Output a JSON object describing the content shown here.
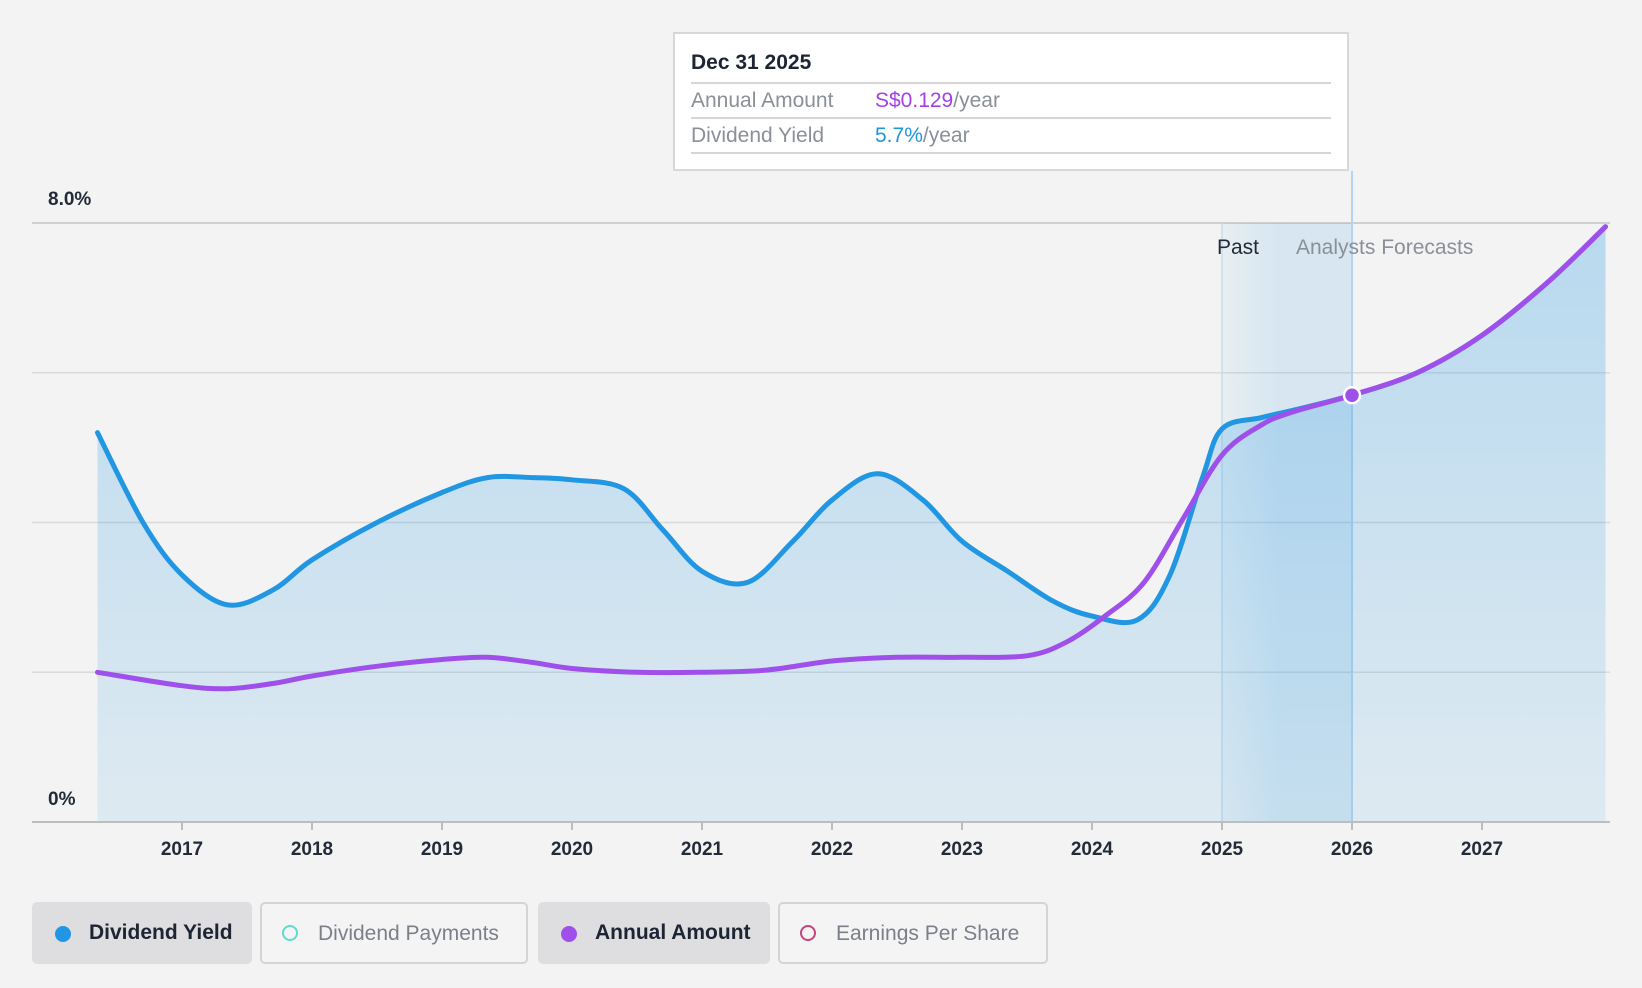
{
  "chart_data": {
    "type": "line",
    "y_axis": {
      "top_label": "8.0%",
      "bottom_label": "0%",
      "ylim": [
        0,
        8.0
      ],
      "unit": "%"
    },
    "x_axis": {
      "tick_labels": [
        "2017",
        "2018",
        "2019",
        "2020",
        "2021",
        "2022",
        "2023",
        "2024",
        "2025",
        "2026",
        "2027"
      ],
      "xlim": [
        2016.35,
        2027.95
      ]
    },
    "grid": true,
    "regions": {
      "past_label": "Past",
      "forecast_label": "Analysts Forecasts",
      "past_start": 2025.0,
      "forecast_start": 2025.45,
      "cursor": 2026.0
    },
    "series": [
      {
        "name": "Dividend Yield",
        "color": "#2196e3",
        "filled": true,
        "points": [
          [
            2016.35,
            5.2
          ],
          [
            2016.7,
            4.0
          ],
          [
            2017.0,
            3.3
          ],
          [
            2017.35,
            2.9
          ],
          [
            2017.7,
            3.1
          ],
          [
            2018.0,
            3.5
          ],
          [
            2018.5,
            4.0
          ],
          [
            2019.0,
            4.4
          ],
          [
            2019.35,
            4.6
          ],
          [
            2019.7,
            4.6
          ],
          [
            2020.0,
            4.57
          ],
          [
            2020.4,
            4.45
          ],
          [
            2020.7,
            3.9
          ],
          [
            2021.0,
            3.35
          ],
          [
            2021.35,
            3.2
          ],
          [
            2021.7,
            3.75
          ],
          [
            2022.0,
            4.3
          ],
          [
            2022.35,
            4.65
          ],
          [
            2022.7,
            4.3
          ],
          [
            2023.0,
            3.75
          ],
          [
            2023.35,
            3.35
          ],
          [
            2023.7,
            2.95
          ],
          [
            2024.0,
            2.75
          ],
          [
            2024.35,
            2.7
          ],
          [
            2024.6,
            3.3
          ],
          [
            2024.85,
            4.6
          ],
          [
            2025.0,
            5.25
          ],
          [
            2025.3,
            5.4
          ],
          [
            2025.55,
            5.5
          ],
          [
            2026.0,
            5.7
          ],
          [
            2026.5,
            6.0
          ],
          [
            2027.0,
            6.5
          ],
          [
            2027.5,
            7.2
          ],
          [
            2027.95,
            7.95
          ]
        ]
      },
      {
        "name": "Annual Amount",
        "color": "#a050ea",
        "filled": false,
        "points": [
          [
            2016.35,
            2.0
          ],
          [
            2017.0,
            1.82
          ],
          [
            2017.35,
            1.78
          ],
          [
            2017.7,
            1.85
          ],
          [
            2018.0,
            1.95
          ],
          [
            2018.5,
            2.08
          ],
          [
            2019.0,
            2.17
          ],
          [
            2019.35,
            2.2
          ],
          [
            2019.7,
            2.13
          ],
          [
            2020.0,
            2.05
          ],
          [
            2020.5,
            2.0
          ],
          [
            2021.0,
            2.0
          ],
          [
            2021.5,
            2.03
          ],
          [
            2022.0,
            2.15
          ],
          [
            2022.5,
            2.2
          ],
          [
            2023.0,
            2.2
          ],
          [
            2023.5,
            2.22
          ],
          [
            2023.8,
            2.4
          ],
          [
            2024.1,
            2.75
          ],
          [
            2024.4,
            3.2
          ],
          [
            2024.7,
            4.05
          ],
          [
            2025.0,
            4.9
          ],
          [
            2025.3,
            5.3
          ],
          [
            2025.55,
            5.48
          ],
          [
            2026.0,
            5.7
          ],
          [
            2026.5,
            6.0
          ],
          [
            2027.0,
            6.5
          ],
          [
            2027.5,
            7.2
          ],
          [
            2027.95,
            7.95
          ]
        ]
      }
    ],
    "highlight": {
      "x": 2026.0,
      "y": 5.7
    }
  },
  "tooltip": {
    "date": "Dec 31 2025",
    "rows": [
      {
        "label": "Annual Amount",
        "value": "S$0.129",
        "unit": "/year"
      },
      {
        "label": "Dividend Yield",
        "value": "5.7%",
        "unit": "/year"
      }
    ]
  },
  "legend": [
    {
      "label": "Dividend Yield",
      "active": true,
      "color": "#2196e3",
      "filled": true
    },
    {
      "label": "Dividend Payments",
      "active": false,
      "color": "#5fd9d2",
      "filled": false
    },
    {
      "label": "Annual Amount",
      "active": true,
      "color": "#a050ea",
      "filled": true
    },
    {
      "label": "Earnings Per Share",
      "active": false,
      "color": "#c2467e",
      "filled": false
    }
  ]
}
